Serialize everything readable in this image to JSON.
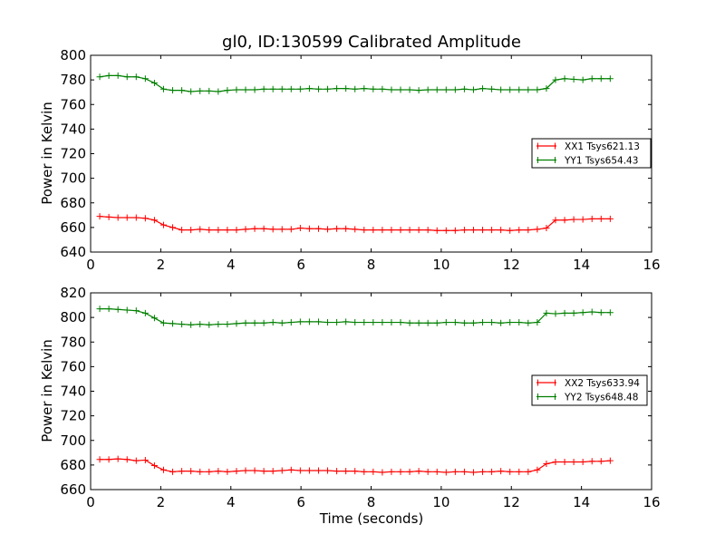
{
  "chart_data": [
    {
      "type": "line",
      "title": "gl0, ID:130599 Calibrated Amplitude",
      "xlabel": "",
      "ylabel": "Power in Kelvin",
      "xlim": [
        0,
        16
      ],
      "ylim": [
        640,
        800
      ],
      "xticks": [
        0,
        2,
        4,
        6,
        8,
        10,
        12,
        14,
        16
      ],
      "yticks": [
        640,
        660,
        680,
        700,
        720,
        740,
        760,
        780,
        800
      ],
      "grid": false,
      "legend_position": "right",
      "series": [
        {
          "name": "XX1 Tsys621.13",
          "color": "#ff0000",
          "x": [
            0.26,
            0.52,
            0.78,
            1.04,
            1.3,
            1.56,
            1.82,
            2.08,
            2.34,
            2.6,
            2.86,
            3.12,
            3.38,
            3.64,
            3.9,
            4.16,
            4.42,
            4.68,
            4.94,
            5.2,
            5.46,
            5.72,
            5.98,
            6.24,
            6.5,
            6.76,
            7.02,
            7.28,
            7.54,
            7.8,
            8.06,
            8.32,
            8.58,
            8.84,
            9.1,
            9.36,
            9.62,
            9.88,
            10.14,
            10.4,
            10.66,
            10.92,
            11.18,
            11.44,
            11.7,
            11.96,
            12.22,
            12.48,
            12.74,
            13.0,
            13.26,
            13.52,
            13.78,
            14.04,
            14.3,
            14.56,
            14.82
          ],
          "y": [
            669,
            668.5,
            668,
            668,
            668,
            667.5,
            666,
            662,
            660,
            658,
            658,
            658.5,
            658,
            658,
            658,
            658,
            658.5,
            659,
            659,
            658.5,
            658.5,
            658.5,
            659.5,
            659,
            659,
            658.5,
            659,
            659,
            658.5,
            658,
            658,
            658,
            658,
            658,
            658,
            658,
            658,
            657.5,
            657.5,
            657.5,
            658,
            658,
            658,
            658,
            658,
            657.5,
            658,
            658,
            658.5,
            659.5,
            666,
            666,
            666.5,
            666.5,
            667,
            667,
            667
          ]
        },
        {
          "name": "YY1 Tsys654.43",
          "color": "#008000",
          "x": [
            0.26,
            0.52,
            0.78,
            1.04,
            1.3,
            1.56,
            1.82,
            2.08,
            2.34,
            2.6,
            2.86,
            3.12,
            3.38,
            3.64,
            3.9,
            4.16,
            4.42,
            4.68,
            4.94,
            5.2,
            5.46,
            5.72,
            5.98,
            6.24,
            6.5,
            6.76,
            7.02,
            7.28,
            7.54,
            7.8,
            8.06,
            8.32,
            8.58,
            8.84,
            9.1,
            9.36,
            9.62,
            9.88,
            10.14,
            10.4,
            10.66,
            10.92,
            11.18,
            11.44,
            11.7,
            11.96,
            12.22,
            12.48,
            12.74,
            13.0,
            13.26,
            13.52,
            13.78,
            14.04,
            14.3,
            14.56,
            14.82
          ],
          "y": [
            782.5,
            783.5,
            783.5,
            782.5,
            782.5,
            781,
            777.5,
            772.5,
            771.5,
            771.5,
            770.5,
            771,
            771,
            770.5,
            771.5,
            772,
            772,
            772,
            772.5,
            772.5,
            772.5,
            772.5,
            772.5,
            773,
            772.5,
            772.5,
            773,
            773,
            772.5,
            773,
            772.5,
            772.5,
            772,
            772,
            772,
            771.5,
            772,
            772,
            772,
            772,
            772.5,
            772,
            773,
            772.5,
            772,
            772,
            772,
            772,
            772,
            773,
            780,
            781,
            780.5,
            780,
            781,
            781,
            781
          ]
        }
      ]
    },
    {
      "type": "line",
      "title": "",
      "xlabel": "Time (seconds)",
      "ylabel": "Power in Kelvin",
      "xlim": [
        0,
        16
      ],
      "ylim": [
        660,
        820
      ],
      "xticks": [
        0,
        2,
        4,
        6,
        8,
        10,
        12,
        14,
        16
      ],
      "yticks": [
        660,
        680,
        700,
        720,
        740,
        760,
        780,
        800,
        820
      ],
      "grid": false,
      "legend_position": "right",
      "series": [
        {
          "name": "XX2 Tsys633.94",
          "color": "#ff0000",
          "x": [
            0.26,
            0.52,
            0.78,
            1.04,
            1.3,
            1.56,
            1.82,
            2.08,
            2.34,
            2.6,
            2.86,
            3.12,
            3.38,
            3.64,
            3.9,
            4.16,
            4.42,
            4.68,
            4.94,
            5.2,
            5.46,
            5.72,
            5.98,
            6.24,
            6.5,
            6.76,
            7.02,
            7.28,
            7.54,
            7.8,
            8.06,
            8.32,
            8.58,
            8.84,
            9.1,
            9.36,
            9.62,
            9.88,
            10.14,
            10.4,
            10.66,
            10.92,
            11.18,
            11.44,
            11.7,
            11.96,
            12.22,
            12.48,
            12.74,
            13.0,
            13.26,
            13.52,
            13.78,
            14.04,
            14.3,
            14.56,
            14.82
          ],
          "y": [
            684.5,
            684.5,
            685,
            684.5,
            683.5,
            684,
            679.5,
            676,
            674.5,
            675,
            675,
            674.5,
            674.5,
            675,
            674.5,
            675,
            675.5,
            675.5,
            675,
            675,
            675.5,
            676,
            675.5,
            675.5,
            675.5,
            675.5,
            675,
            675,
            675,
            674.5,
            674.5,
            674,
            674.5,
            674.5,
            674.5,
            675,
            674.5,
            674.5,
            674,
            674.5,
            674.5,
            674,
            674.5,
            674.5,
            675,
            674.5,
            674.5,
            674.5,
            676,
            681,
            682.5,
            682.5,
            682.5,
            682.5,
            683,
            683,
            683.5
          ]
        },
        {
          "name": "YY2 Tsys648.48",
          "color": "#008000",
          "x": [
            0.26,
            0.52,
            0.78,
            1.04,
            1.3,
            1.56,
            1.82,
            2.08,
            2.34,
            2.6,
            2.86,
            3.12,
            3.38,
            3.64,
            3.9,
            4.16,
            4.42,
            4.68,
            4.94,
            5.2,
            5.46,
            5.72,
            5.98,
            6.24,
            6.5,
            6.76,
            7.02,
            7.28,
            7.54,
            7.8,
            8.06,
            8.32,
            8.58,
            8.84,
            9.1,
            9.36,
            9.62,
            9.88,
            10.14,
            10.4,
            10.66,
            10.92,
            11.18,
            11.44,
            11.7,
            11.96,
            12.22,
            12.48,
            12.74,
            13.0,
            13.26,
            13.52,
            13.78,
            14.04,
            14.3,
            14.56,
            14.82
          ],
          "y": [
            807,
            807,
            806.5,
            806,
            805.5,
            803.5,
            799.5,
            795.5,
            795,
            794.5,
            794,
            794.5,
            794,
            794.5,
            794.5,
            795,
            795.5,
            795.5,
            795.5,
            796,
            795.5,
            796,
            796.5,
            796.5,
            796.5,
            796,
            796,
            796.5,
            796,
            796,
            796,
            796,
            796,
            796,
            795.5,
            795.5,
            795.5,
            795.5,
            796,
            796,
            795.5,
            795.5,
            796,
            796,
            795.5,
            796,
            796,
            795.5,
            796,
            803.5,
            803,
            803.5,
            803.5,
            804,
            804.5,
            804,
            804
          ]
        }
      ]
    }
  ]
}
